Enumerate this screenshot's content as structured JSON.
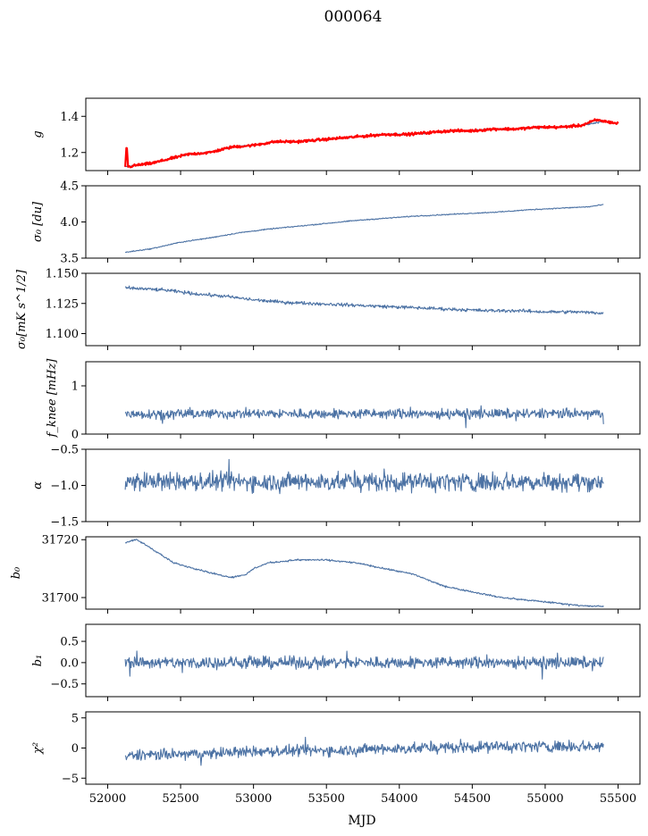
{
  "figure": {
    "title": "000064",
    "xlabel": "MJD"
  },
  "colors": {
    "series": "#4c72a4",
    "model": "#ff0000",
    "axes": "#000000"
  },
  "chart_data": [
    {
      "type": "line",
      "ylabel": "g",
      "ylabel_tex": "g",
      "xlim": [
        51850,
        55650
      ],
      "ylim": [
        1.1,
        1.5
      ],
      "yticks": [
        1.2,
        1.4
      ],
      "ytick_labels": [
        "1.2",
        "1.4"
      ],
      "series": [
        {
          "role": "data",
          "x": [
            52120,
            52200,
            52300,
            52450,
            52550,
            52700,
            52850,
            53000,
            53150,
            53300,
            53450,
            53600,
            53750,
            53900,
            54050,
            54200,
            54350,
            54500,
            54650,
            54800,
            54950,
            55100,
            55250,
            55400
          ],
          "y": [
            1.12,
            1.13,
            1.14,
            1.17,
            1.19,
            1.2,
            1.23,
            1.24,
            1.26,
            1.26,
            1.27,
            1.28,
            1.29,
            1.3,
            1.3,
            1.31,
            1.32,
            1.32,
            1.33,
            1.33,
            1.34,
            1.34,
            1.35,
            1.37
          ],
          "noise": 0.004
        },
        {
          "role": "model",
          "x": [
            52120,
            52130,
            52140,
            52200,
            52300,
            52450,
            52550,
            52700,
            52850,
            53000,
            53150,
            53300,
            53450,
            53600,
            53750,
            53900,
            54050,
            54200,
            54350,
            54500,
            54650,
            54800,
            54950,
            55100,
            55250,
            55350,
            55500
          ],
          "y": [
            1.12,
            1.25,
            1.12,
            1.13,
            1.14,
            1.17,
            1.19,
            1.2,
            1.23,
            1.24,
            1.26,
            1.26,
            1.27,
            1.28,
            1.29,
            1.3,
            1.3,
            1.31,
            1.32,
            1.32,
            1.33,
            1.33,
            1.34,
            1.34,
            1.35,
            1.38,
            1.36
          ],
          "noise": 0.006
        }
      ]
    },
    {
      "type": "line",
      "ylabel": "σ0 [du]",
      "ylabel_tex": "σ₀ [du]",
      "xlim": [
        51850,
        55650
      ],
      "ylim": [
        3.5,
        4.5
      ],
      "yticks": [
        3.5,
        4.0,
        4.5
      ],
      "ytick_labels": [
        "3.5",
        "4.0",
        "4.5"
      ],
      "series": [
        {
          "role": "data",
          "x": [
            52120,
            52300,
            52500,
            52700,
            52900,
            53100,
            53300,
            53500,
            53700,
            53900,
            54100,
            54300,
            54500,
            54700,
            54900,
            55100,
            55300,
            55400
          ],
          "y": [
            3.58,
            3.63,
            3.72,
            3.78,
            3.85,
            3.9,
            3.94,
            3.98,
            4.02,
            4.05,
            4.08,
            4.1,
            4.12,
            4.14,
            4.17,
            4.19,
            4.21,
            4.24
          ],
          "noise": 0.006
        }
      ]
    },
    {
      "type": "line",
      "ylabel": "σ0 [mK s^1/2]",
      "ylabel_tex": "σ₀[mK s^1/2]",
      "xlim": [
        51850,
        55650
      ],
      "ylim": [
        1.09,
        1.15
      ],
      "yticks": [
        1.1,
        1.125,
        1.15
      ],
      "ytick_labels": [
        "1.100",
        "1.125",
        "1.150"
      ],
      "series": [
        {
          "role": "data",
          "x": [
            52120,
            52400,
            52600,
            52800,
            53000,
            53200,
            53400,
            53600,
            53800,
            54000,
            54200,
            54400,
            54600,
            54800,
            55000,
            55200,
            55400
          ],
          "y": [
            1.138,
            1.136,
            1.133,
            1.131,
            1.128,
            1.126,
            1.125,
            1.124,
            1.123,
            1.122,
            1.121,
            1.12,
            1.119,
            1.119,
            1.118,
            1.118,
            1.117
          ],
          "noise": 0.0012
        }
      ]
    },
    {
      "type": "line",
      "ylabel": "f_knee [mHz]",
      "ylabel_tex": "f_knee [mHz]",
      "xlim": [
        51850,
        55650
      ],
      "ylim": [
        0,
        1.5
      ],
      "yticks": [
        0,
        1
      ],
      "ytick_labels": [
        "0",
        "1"
      ],
      "series": [
        {
          "role": "data",
          "x": [
            52120,
            55400
          ],
          "y": [
            0.42,
            0.42
          ],
          "noise": 0.09
        }
      ]
    },
    {
      "type": "line",
      "ylabel": "α",
      "ylabel_tex": "α",
      "xlim": [
        51850,
        55650
      ],
      "ylim": [
        -1.5,
        -0.5
      ],
      "yticks": [
        -1.5,
        -1.0,
        -0.5
      ],
      "ytick_labels": [
        "−1.5",
        "−1.0",
        "−0.5"
      ],
      "series": [
        {
          "role": "data",
          "x": [
            52120,
            55400
          ],
          "y": [
            -0.95,
            -0.95
          ],
          "noise": 0.11
        }
      ]
    },
    {
      "type": "line",
      "ylabel": "b0",
      "ylabel_tex": "b₀",
      "xlim": [
        51850,
        55650
      ],
      "ylim": [
        31696,
        31721
      ],
      "yticks": [
        31700,
        31720
      ],
      "ytick_labels": [
        "31700",
        "31720"
      ],
      "series": [
        {
          "role": "data",
          "x": [
            52120,
            52200,
            52300,
            52450,
            52600,
            52750,
            52850,
            52950,
            53000,
            53100,
            53300,
            53500,
            53700,
            53900,
            54100,
            54300,
            54500,
            54700,
            54900,
            55100,
            55300,
            55400
          ],
          "y": [
            31719,
            31720,
            31717,
            31712,
            31710,
            31708,
            31707,
            31708,
            31710,
            31712,
            31713,
            31713,
            31712,
            31710,
            31708,
            31704,
            31702,
            31700,
            31699,
            31698,
            31697,
            31697
          ],
          "noise": 0.25
        }
      ]
    },
    {
      "type": "line",
      "ylabel": "b1",
      "ylabel_tex": "b₁",
      "xlim": [
        51850,
        55650
      ],
      "ylim": [
        -0.8,
        0.9
      ],
      "yticks": [
        -0.5,
        0.0,
        0.5
      ],
      "ytick_labels": [
        "−0.5",
        "0.0",
        "0.5"
      ],
      "series": [
        {
          "role": "data",
          "x": [
            52120,
            55400
          ],
          "y": [
            0.0,
            0.0
          ],
          "noise": 0.12
        }
      ]
    },
    {
      "type": "line",
      "ylabel": "χ2",
      "ylabel_tex": "χ²",
      "xlim": [
        51850,
        55650
      ],
      "ylim": [
        -6,
        6
      ],
      "yticks": [
        -5,
        0,
        5
      ],
      "ytick_labels": [
        "−5",
        "0",
        "5"
      ],
      "xticks": [
        52000,
        52500,
        53000,
        53500,
        54000,
        54500,
        55000,
        55500
      ],
      "xtick_labels": [
        "52000",
        "52500",
        "53000",
        "53500",
        "54000",
        "54500",
        "55000",
        "55500"
      ],
      "series": [
        {
          "role": "data",
          "x": [
            52120,
            52600,
            53000,
            53500,
            54000,
            54500,
            55000,
            55400
          ],
          "y": [
            -1.3,
            -1.0,
            -0.6,
            -0.4,
            -0.1,
            0.2,
            0.3,
            0.3
          ],
          "noise": 0.8
        }
      ]
    }
  ]
}
